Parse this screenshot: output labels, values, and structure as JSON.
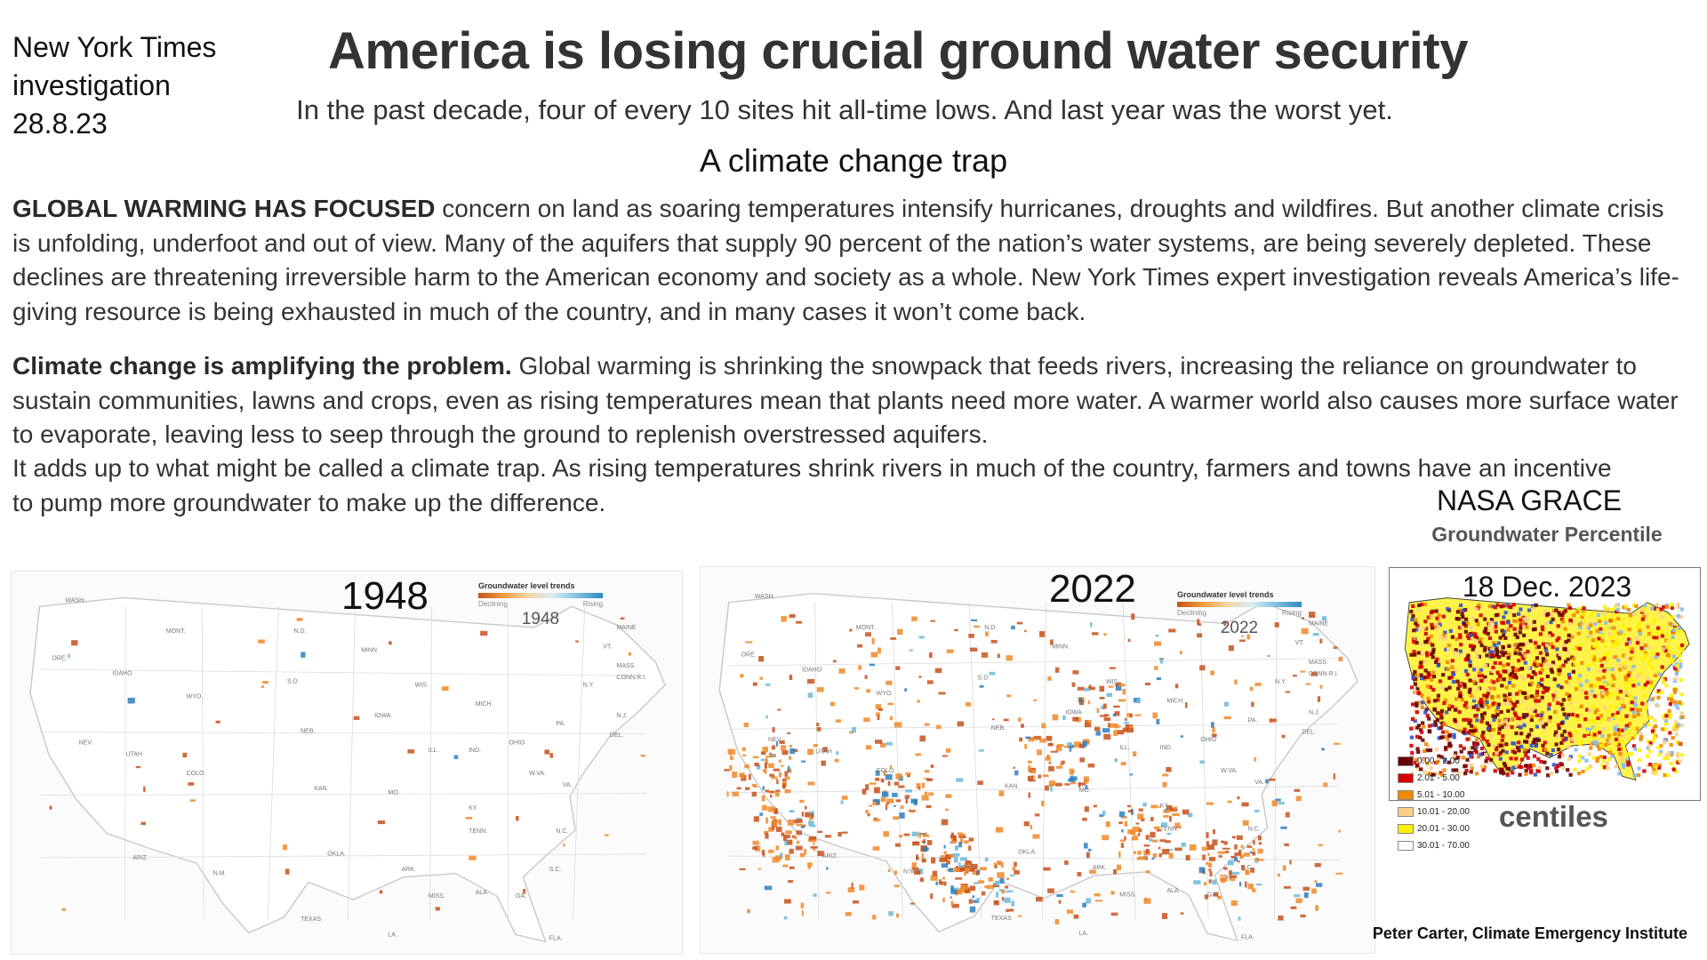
{
  "source_note": [
    "New York Times",
    "investigation",
    "28.8.23"
  ],
  "title": "America is losing crucial ground water security",
  "subtitle": "In the past decade, four of every 10 sites hit all-time lows. And last year was the worst yet.",
  "section_heading": "A climate change trap",
  "para1": {
    "lead": "GLOBAL WARMING HAS FOCUSED",
    "body": " concern on land as soaring temperatures intensify hurricanes, droughts and wildfires. But another climate crisis is unfolding, underfoot and out of view. Many of the aquifers that supply 90 percent of the nation’s water systems, are being severely depleted. These declines are threatening irreversible harm to the American economy and society as a whole. New York Times expert investigation reveals America’s life-giving resource is being exhausted in much of the country, and in many cases it won’t come back."
  },
  "para2": {
    "lead": "Climate change is amplifying the problem.",
    "body": " Global warming is shrinking the snowpack that feeds rivers, increasing the reliance on groundwater to sustain communities, lawns and crops, even as rising temperatures mean that plants need more water. A warmer world also causes more surface water to evaporate, leaving less to seep through the ground to replenish overstressed aquifers."
  },
  "para3": "It adds up to what might be called a climate trap. As rising temperatures shrink rivers in much of the country, farmers and towns have an incentive to pump more groundwater to make up the difference.",
  "maps": {
    "map1": {
      "year": "1948",
      "legend_title": "Groundwater level trends",
      "legend_low": "Declining",
      "legend_high": "Rising",
      "legend_year": "1948"
    },
    "map2": {
      "year": "2022",
      "legend_title": "Groundwater level trends",
      "legend_low": "Declining",
      "legend_high": "Rising",
      "legend_year": "2022"
    },
    "state_labels_1948": [
      "WASH.",
      "MONT.",
      "N.D.",
      "MINN.",
      "ORE.",
      "IDAHO",
      "S.D.",
      "WYO.",
      "WIS.",
      "MICH.",
      "NEB.",
      "IOWA",
      "NEV.",
      "UTAH",
      "COLO.",
      "ILL.",
      "IND.",
      "OHIO",
      "PA.",
      "N.Y.",
      "KAN.",
      "MO.",
      "KY.",
      "W.VA.",
      "VA.",
      "ARIZ.",
      "N.M.",
      "OKLA.",
      "ARK.",
      "TENN.",
      "N.C.",
      "S.C.",
      "MISS.",
      "ALA.",
      "GA.",
      "TEXAS",
      "LA.",
      "FLA.",
      "MAINE",
      "VT.",
      "MASS.",
      "CONN.",
      "R.I.",
      "N.J.",
      "DEL."
    ],
    "state_labels_2022": [
      "WASH.",
      "MONT.",
      "N.D.",
      "MINN.",
      "ORE.",
      "IDAHO",
      "S.D.",
      "WYO.",
      "WIS.",
      "MICH.",
      "NEB.",
      "IOWA",
      "NEV.",
      "UTAH",
      "COLO.",
      "ILL.",
      "IND.",
      "OHIO",
      "PA.",
      "N.Y.",
      "KAN.",
      "MO.",
      "KY.",
      "W.VA.",
      "VA.",
      "ARIZ.",
      "N.M.",
      "OKLA.",
      "ARK.",
      "TENN.",
      "N.C.",
      "S.C.",
      "MISS.",
      "ALA.",
      "GA.",
      "TEXAS",
      "LA.",
      "FLA.",
      "MAINE",
      "VT.",
      "MASS.",
      "CONN.",
      "R.I.",
      "N.J.",
      "DEL."
    ]
  },
  "grace": {
    "title": "NASA GRACE",
    "subtitle": "Groundwater Percentile",
    "date": "18 Dec. 2023",
    "centiles_label": "centiles",
    "legend": [
      {
        "label": "0.00 - 2.00",
        "color": "#6b0000"
      },
      {
        "label": "2.01 - 5.00",
        "color": "#d40000"
      },
      {
        "label": "5.01 - 10.00",
        "color": "#ee8a00"
      },
      {
        "label": "10.01 - 20.00",
        "color": "#fcd08a"
      },
      {
        "label": "20.01 - 30.00",
        "color": "#fff200"
      },
      {
        "label": "30.01 - 70.00",
        "color": "#ffffff"
      }
    ]
  },
  "credit": "Peter Carter, Climate Emergency Institute",
  "colors": {
    "declining_dark": "#c8501a",
    "declining": "#ee8a2a",
    "rising": "#6cb9dc",
    "rising_dark": "#2b7fc0"
  }
}
